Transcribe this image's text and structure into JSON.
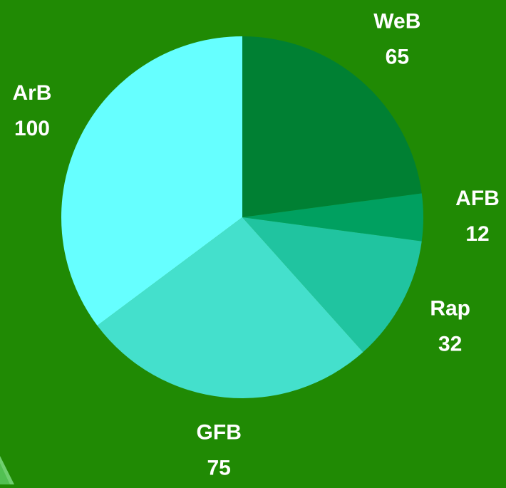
{
  "chart_data": {
    "type": "pie",
    "categories": [
      "WeB",
      "AFB",
      "Rap",
      "GFB",
      "ArB"
    ],
    "values": [
      65,
      12,
      32,
      75,
      100
    ],
    "colors": [
      "#008033",
      "#00a060",
      "#20c4a0",
      "#44e0cc",
      "#66ffff"
    ]
  }
}
